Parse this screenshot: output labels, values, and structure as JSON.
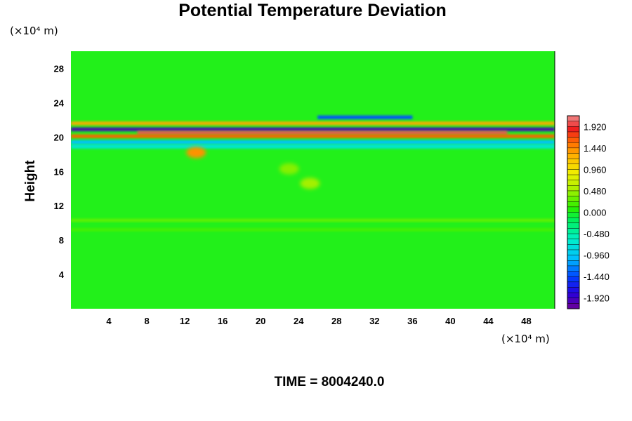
{
  "chart_data": {
    "type": "heatmap",
    "title": "Potential Temperature Deviation",
    "xlabel": "",
    "ylabel": "Height",
    "x_unit": "(×10⁴ m)",
    "y_unit": "(×10⁴ m)",
    "xlim": [
      0,
      51
    ],
    "ylim": [
      0,
      30
    ],
    "x_ticks": [
      4,
      8,
      12,
      16,
      20,
      24,
      28,
      32,
      36,
      40,
      44,
      48
    ],
    "y_ticks": [
      4,
      8,
      12,
      16,
      20,
      24,
      28
    ],
    "colorbar": {
      "range": [
        -2.16,
        2.16
      ],
      "labels": [
        "1.920",
        "1.440",
        "0.960",
        "0.480",
        "0.000",
        "-0.480",
        "-0.960",
        "-1.440",
        "-1.920"
      ]
    },
    "bands": [
      {
        "y": 20.9,
        "x_from": 0,
        "x_to": 51,
        "value": -2.0
      },
      {
        "y": 20.5,
        "x_from": 7,
        "x_to": 46,
        "value": 2.0
      },
      {
        "y": 20.1,
        "x_from": 0,
        "x_to": 51,
        "value": 1.6
      },
      {
        "y": 21.6,
        "x_from": 0,
        "x_to": 51,
        "value": 1.3
      },
      {
        "y": 19.4,
        "x_from": 0,
        "x_to": 51,
        "value": -1.0
      },
      {
        "y": 22.3,
        "x_from": 26,
        "x_to": 36,
        "value": -1.4
      },
      {
        "y": 18.9,
        "x_from": 0,
        "x_to": 51,
        "value": -0.7
      },
      {
        "y": 10.3,
        "x_from": 0,
        "x_to": 51,
        "value": 0.3
      },
      {
        "y": 9.2,
        "x_from": 0,
        "x_to": 51,
        "value": 0.2
      }
    ],
    "blobs": [
      {
        "x": 13.2,
        "y": 18.2,
        "value": 1.4
      },
      {
        "x": 25.2,
        "y": 14.6,
        "value": 0.5
      },
      {
        "x": 23.0,
        "y": 16.3,
        "value": 0.4
      }
    ]
  },
  "footer": {
    "time_label": "TIME = 8004240.0"
  }
}
